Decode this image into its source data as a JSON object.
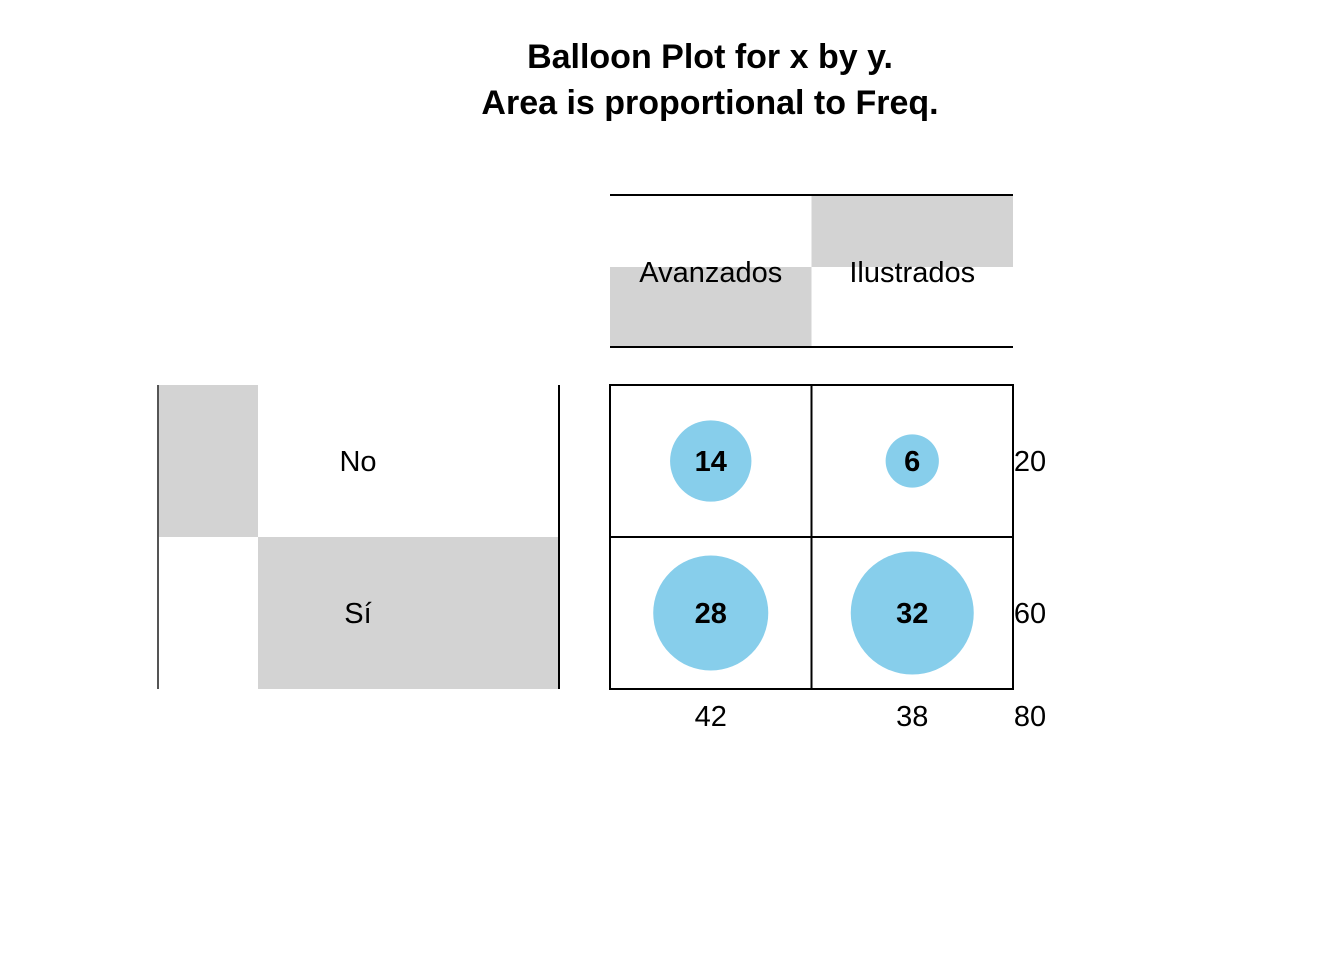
{
  "chart_data": {
    "type": "balloon",
    "title": "Balloon Plot for x by y.",
    "subtitle": "Area is proportional to Freq.",
    "columns": [
      "Avanzados",
      "Ilustrados"
    ],
    "rows": [
      "No",
      "Sí"
    ],
    "values": [
      [
        14,
        6
      ],
      [
        28,
        32
      ]
    ],
    "row_totals": [
      20,
      60
    ],
    "col_totals": [
      42,
      38
    ],
    "grand_total": 80,
    "balloon_color": "#87CEEB",
    "shade_color": "#D3D3D3"
  }
}
